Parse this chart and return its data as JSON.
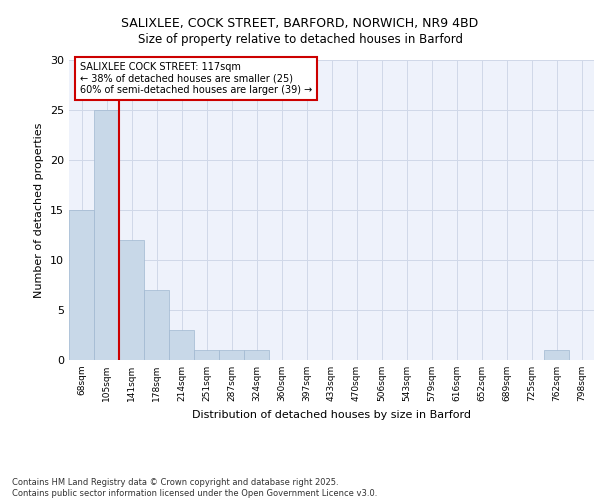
{
  "title_line1": "SALIXLEE, COCK STREET, BARFORD, NORWICH, NR9 4BD",
  "title_line2": "Size of property relative to detached houses in Barford",
  "xlabel": "Distribution of detached houses by size in Barford",
  "ylabel": "Number of detached properties",
  "categories": [
    "68sqm",
    "105sqm",
    "141sqm",
    "178sqm",
    "214sqm",
    "251sqm",
    "287sqm",
    "324sqm",
    "360sqm",
    "397sqm",
    "433sqm",
    "470sqm",
    "506sqm",
    "543sqm",
    "579sqm",
    "616sqm",
    "652sqm",
    "689sqm",
    "725sqm",
    "762sqm",
    "798sqm"
  ],
  "values": [
    15,
    25,
    12,
    7,
    3,
    1,
    1,
    1,
    0,
    0,
    0,
    0,
    0,
    0,
    0,
    0,
    0,
    0,
    0,
    1,
    0
  ],
  "bar_color": "#c8d8e8",
  "bar_edge_color": "#a0b8d0",
  "grid_color": "#d0d8e8",
  "bg_color": "#eef2fb",
  "red_line_x": 1.5,
  "annotation_text": "SALIXLEE COCK STREET: 117sqm\n← 38% of detached houses are smaller (25)\n60% of semi-detached houses are larger (39) →",
  "annotation_box_color": "#ffffff",
  "annotation_box_edge_color": "#cc0000",
  "footer_text": "Contains HM Land Registry data © Crown copyright and database right 2025.\nContains public sector information licensed under the Open Government Licence v3.0.",
  "ylim": [
    0,
    30
  ],
  "yticks": [
    0,
    5,
    10,
    15,
    20,
    25,
    30
  ]
}
